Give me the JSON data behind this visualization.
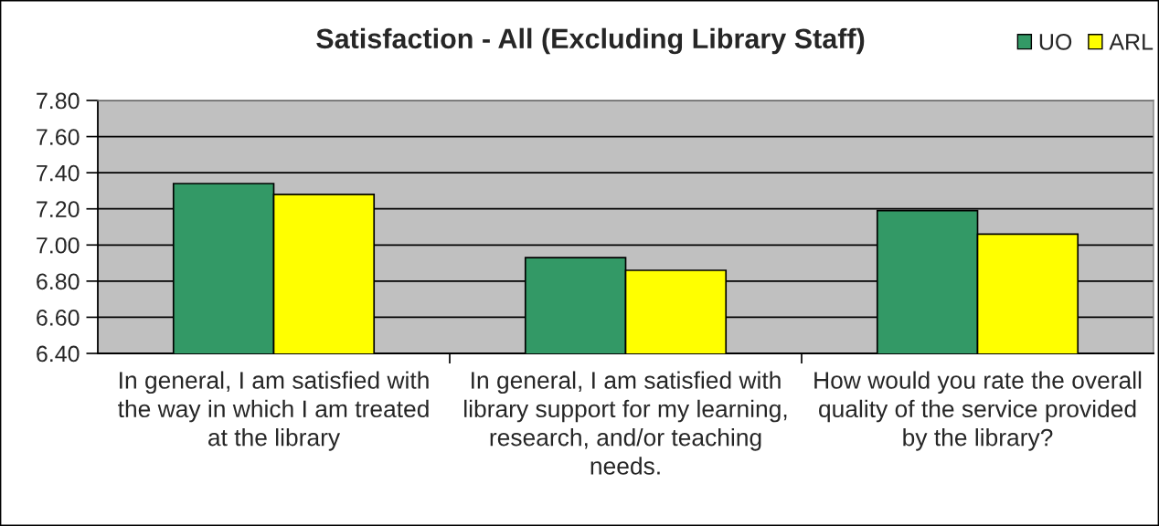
{
  "chart_data": {
    "type": "bar",
    "title": "Satisfaction - All (Excluding Library Staff)",
    "categories": [
      "In general, I am satisfied with the way in which I am treated at the library",
      "In general, I am satisfied with library support for my learning, research, and/or teaching needs.",
      "How would you rate the overall quality of the service provided by the library?"
    ],
    "series": [
      {
        "name": "UO",
        "color": "#339966",
        "values": [
          7.34,
          6.93,
          7.19
        ]
      },
      {
        "name": "ARL",
        "color": "#ffff00",
        "values": [
          7.28,
          6.86,
          7.06
        ]
      }
    ],
    "ylim": [
      6.4,
      7.8
    ],
    "yticks": [
      {
        "value": 6.4,
        "label": "6.40"
      },
      {
        "value": 6.6,
        "label": "6.60"
      },
      {
        "value": 6.8,
        "label": "6.80"
      },
      {
        "value": 7.0,
        "label": "7.00"
      },
      {
        "value": 7.2,
        "label": "7.20"
      },
      {
        "value": 7.4,
        "label": "7.40"
      },
      {
        "value": 7.6,
        "label": "7.60"
      },
      {
        "value": 7.8,
        "label": "7.80"
      }
    ],
    "grid": "y",
    "legend": "top right"
  }
}
